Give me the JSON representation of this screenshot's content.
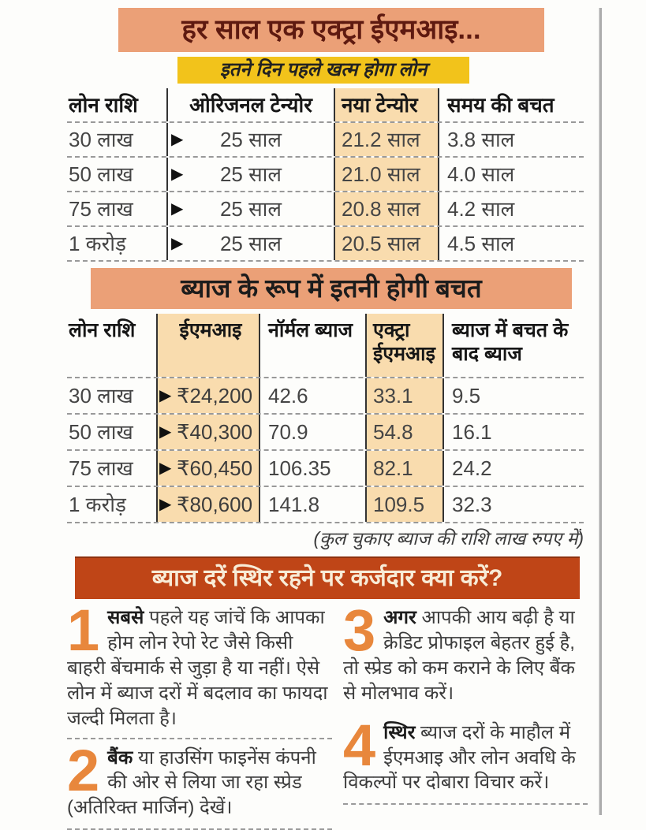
{
  "icons": {
    "arrow_right": "▶"
  },
  "colors": {
    "banner_peach": "#eba077",
    "banner_yellow": "#f2c31b",
    "column_highlight": "#f9dcae",
    "banner_red": "#bf4517",
    "tip_number_orange": "#e8873c",
    "title_maroon": "#5e1a10"
  },
  "header": {
    "title": "हर साल एक एक्ट्रा ईएमआइ...",
    "subtitle": "इतने दिन पहले खत्म होगा लोन"
  },
  "tenure_table": {
    "headers": [
      "लोन राशि",
      "ओरिजनल टेन्योर",
      "नया टेन्योर",
      "समय की बचत"
    ],
    "rows": [
      {
        "cells": [
          "30 लाख",
          "25 साल",
          "21.2 साल",
          "3.8 साल"
        ]
      },
      {
        "cells": [
          "50 लाख",
          "25 साल",
          "21.0 साल",
          "4.0 साल"
        ]
      },
      {
        "cells": [
          "75 लाख",
          "25 साल",
          "20.8 साल",
          "4.2 साल"
        ]
      },
      {
        "cells": [
          "1 करोड़",
          "25 साल",
          "20.5 साल",
          "4.5 साल"
        ]
      }
    ]
  },
  "interest_section": {
    "title": "ब्याज के रूप में इतनी होगी बचत"
  },
  "interest_table": {
    "headers": [
      "लोन राशि",
      "ईएमआइ",
      "नॉर्मल ब्याज",
      "एक्ट्रा ईएमआइ",
      "ब्याज में बचत के बाद ब्याज"
    ],
    "rows": [
      {
        "cells": [
          "30 लाख",
          "₹24,200",
          "42.6",
          "33.1",
          "9.5"
        ]
      },
      {
        "cells": [
          "50 लाख",
          "₹40,300",
          "70.9",
          "54.8",
          "16.1"
        ]
      },
      {
        "cells": [
          "75 लाख",
          "₹60,450",
          "106.35",
          "82.1",
          "24.2"
        ]
      },
      {
        "cells": [
          "1 करोड़",
          "₹80,600",
          "141.8",
          "109.5",
          "32.3"
        ]
      }
    ],
    "footnote": "(कुल चुकाए ब्याज की राशि लाख रुपए में)"
  },
  "advice_section": {
    "title": "ब्याज दरें स्थिर रहने पर कर्जदार क्या करें?",
    "tips": [
      {
        "number": "1",
        "lead": "सबसे",
        "text": " पहले यह जांचें कि आपका होम लोन रेपो रेट जैसे किसी बाहरी बेंचमार्क से जुड़ा है या नहीं। ऐसे लोन में ब्याज दरों में बदलाव का फायदा जल्दी मिलता है।"
      },
      {
        "number": "2",
        "lead": "बैंक",
        "text": " या हाउसिंग फाइनेंस कंपनी की ओर से लिया जा रहा स्प्रेड (अतिरिक्त मार्जिन) देखें।"
      },
      {
        "number": "3",
        "lead": "अगर",
        "text": " आपकी आय बढ़ी है या क्रेडिट प्रोफाइल बेहतर हुई है, तो स्प्रेड को कम कराने के लिए बैंक से मोलभाव करें।"
      },
      {
        "number": "4",
        "lead": "स्थिर",
        "text": " ब्याज दरों के माहौल में ईएमआइ और लोन अवधि के विकल्पों पर दोबारा विचार करें।"
      }
    ]
  }
}
